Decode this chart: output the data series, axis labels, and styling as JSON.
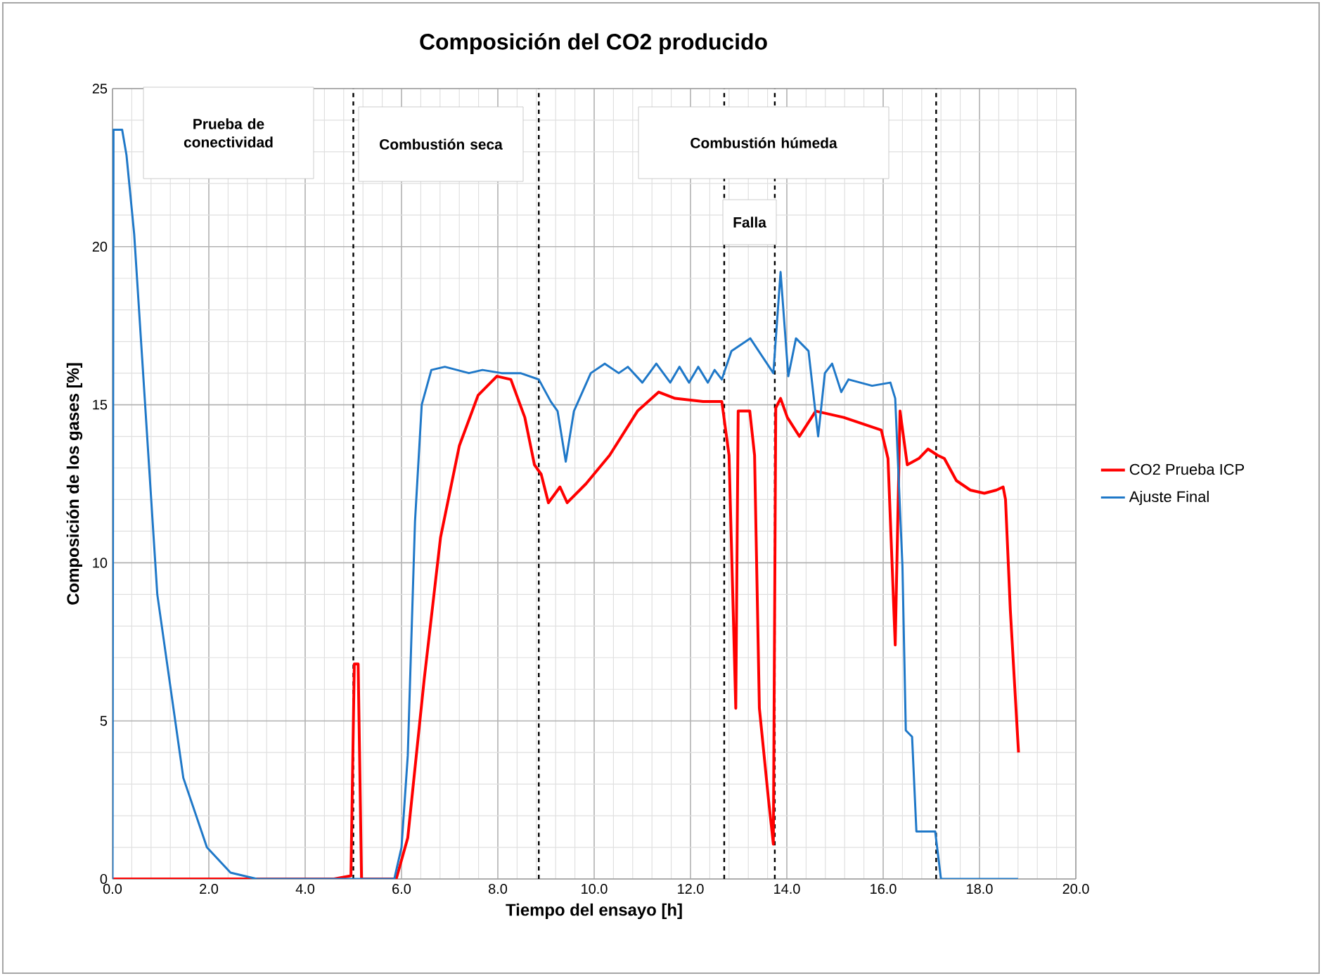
{
  "chart_data": {
    "type": "line",
    "title": "Composición del CO2 producido",
    "xlabel": "Tiempo del ensayo [h]",
    "ylabel": "Composición de los gases [%]",
    "xlim": [
      0,
      20
    ],
    "ylim": [
      0,
      25
    ],
    "xticks": [
      {
        "value": 0,
        "label": "0.0"
      },
      {
        "value": 2,
        "label": "2.0"
      },
      {
        "value": 4,
        "label": "4.0"
      },
      {
        "value": 6,
        "label": "6.0"
      },
      {
        "value": 8,
        "label": "8.0"
      },
      {
        "value": 10,
        "label": "10.0"
      },
      {
        "value": 12,
        "label": "12.0"
      },
      {
        "value": 14,
        "label": "14.0"
      },
      {
        "value": 16,
        "label": "16.0"
      },
      {
        "value": 18,
        "label": "18.0"
      },
      {
        "value": 20,
        "label": "20.0"
      }
    ],
    "yticks": [
      0,
      5,
      10,
      15,
      20,
      25
    ],
    "grid": true,
    "legend": "right",
    "marker": "none",
    "line_style": "solid",
    "series": [
      {
        "name": "CO2 Prueba ICP",
        "color": "#ff0000",
        "x": [
          0,
          4.6,
          4.95,
          5.02,
          5.1,
          5.17,
          5.89,
          6.13,
          6.47,
          6.81,
          7.2,
          7.59,
          7.98,
          8.27,
          8.56,
          8.76,
          8.9,
          9.05,
          9.29,
          9.44,
          9.83,
          10.32,
          10.9,
          11.34,
          11.68,
          12.26,
          12.6,
          12.65,
          12.8,
          12.94,
          12.99,
          13.23,
          13.33,
          13.43,
          13.62,
          13.72,
          13.77,
          13.87,
          14.01,
          14.26,
          14.6,
          15.18,
          15.96,
          16.1,
          16.25,
          16.35,
          16.5,
          16.74,
          16.93,
          17.13,
          17.27,
          17.52,
          17.81,
          18.1,
          18.35,
          18.49,
          18.54,
          18.64,
          18.81
        ],
        "values": [
          0,
          0,
          0.1,
          6.8,
          6.8,
          0,
          0,
          1.3,
          6.3,
          10.8,
          13.7,
          15.3,
          15.9,
          15.8,
          14.6,
          13.1,
          12.8,
          11.9,
          12.4,
          11.9,
          12.5,
          13.4,
          14.8,
          15.4,
          15.2,
          15.1,
          15.1,
          15.1,
          13.4,
          5.4,
          14.8,
          14.8,
          13.4,
          5.4,
          2.5,
          1.1,
          14.9,
          15.2,
          14.6,
          14.0,
          14.8,
          14.6,
          14.2,
          13.3,
          7.4,
          14.8,
          13.1,
          13.3,
          13.6,
          13.4,
          13.3,
          12.6,
          12.3,
          12.2,
          12.3,
          12.4,
          12.0,
          8.5,
          4.0
        ]
      },
      {
        "name": "Ajuste Final",
        "color": "#1f78c8",
        "x": [
          0,
          0.02,
          0.2,
          0.29,
          0.45,
          0.93,
          1.47,
          1.96,
          2.45,
          3.0,
          5.85,
          6.0,
          6.13,
          6.28,
          6.42,
          6.62,
          6.9,
          7.4,
          7.68,
          8.08,
          8.47,
          8.85,
          9.1,
          9.24,
          9.41,
          9.58,
          9.93,
          10.22,
          10.51,
          10.7,
          11.0,
          11.29,
          11.58,
          11.77,
          11.97,
          12.16,
          12.36,
          12.5,
          12.65,
          12.85,
          13.24,
          13.72,
          13.87,
          14.03,
          14.19,
          14.45,
          14.65,
          14.79,
          14.94,
          15.13,
          15.28,
          15.77,
          16.15,
          16.25,
          16.4,
          16.47,
          16.6,
          16.69,
          17.08,
          17.2,
          18.8
        ],
        "values": [
          0,
          23.7,
          23.7,
          22.9,
          20.4,
          9.0,
          3.2,
          1.0,
          0.2,
          0,
          0,
          1.0,
          3.9,
          11.3,
          15.0,
          16.1,
          16.2,
          16.0,
          16.1,
          16.0,
          16.0,
          15.8,
          15.1,
          14.8,
          13.2,
          14.8,
          16.0,
          16.3,
          16.0,
          16.2,
          15.7,
          16.3,
          15.7,
          16.2,
          15.7,
          16.2,
          15.7,
          16.1,
          15.8,
          16.7,
          17.1,
          16.0,
          19.2,
          15.9,
          17.1,
          16.7,
          14.0,
          16.0,
          16.3,
          15.4,
          15.8,
          15.6,
          15.7,
          15.2,
          9.9,
          4.7,
          4.5,
          1.5,
          1.5,
          0,
          0
        ]
      }
    ],
    "ref_lines": [
      {
        "axis": "x",
        "value": 5.0,
        "color": "#000000",
        "line_style": "dashed"
      },
      {
        "axis": "x",
        "value": 8.85,
        "color": "#000000",
        "line_style": "dashed"
      },
      {
        "axis": "x",
        "value": 12.7,
        "color": "#000000",
        "line_style": "dashed"
      },
      {
        "axis": "x",
        "value": 13.75,
        "color": "#000000",
        "line_style": "dashed"
      },
      {
        "axis": "x",
        "value": 17.1,
        "color": "#000000",
        "line_style": "dashed"
      }
    ],
    "annotations": [
      "Prueba de conectividad",
      "Combustión seca",
      "Combustión húmeda",
      "Falla"
    ]
  }
}
